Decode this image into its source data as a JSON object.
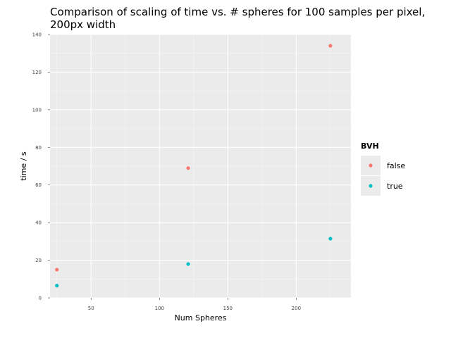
{
  "chart_data": {
    "type": "scatter",
    "title_lines": [
      "Comparison of scaling of time vs. # spheres for 100 samples per pixel,",
      "200px width"
    ],
    "xlabel": "Num Spheres",
    "ylabel": "time / s",
    "xlim": [
      20,
      240
    ],
    "ylim": [
      0,
      140
    ],
    "x_ticks": [
      50,
      100,
      150,
      200
    ],
    "y_ticks": [
      0,
      20,
      40,
      60,
      80,
      100,
      120,
      140
    ],
    "grid": true,
    "legend": {
      "title": "BVH",
      "placement": "right"
    },
    "series": [
      {
        "name": "false",
        "color": "#F8766D",
        "x": [
          25,
          121,
          225
        ],
        "y": [
          15,
          69,
          134
        ]
      },
      {
        "name": "true",
        "color": "#00BFC4",
        "x": [
          25,
          121,
          225
        ],
        "y": [
          6.5,
          18,
          31.5
        ]
      }
    ]
  }
}
